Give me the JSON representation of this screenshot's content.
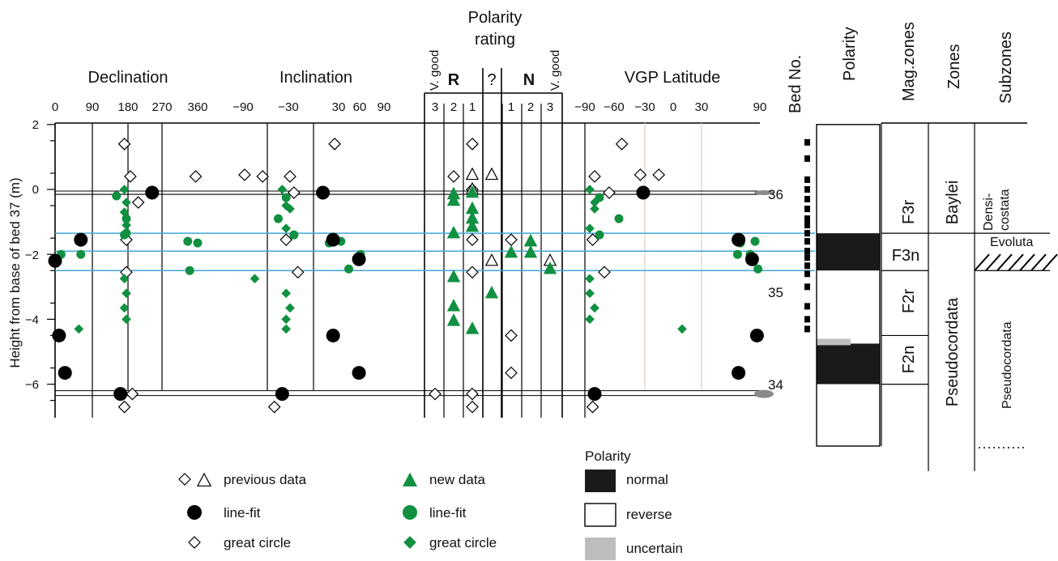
{
  "panels": {
    "declination": "Declination",
    "inclination": "Inclination",
    "vgp": "VGP Latitude",
    "polarity_rating_l1": "Polarity",
    "polarity_rating_l2": "rating",
    "bed_no": "Bed No.",
    "polarity_col": "Polarity",
    "magzones": "Mag.zones",
    "zones": "Zones",
    "subzones": "Subzones"
  },
  "axes": {
    "ylabel": "Height from base of bed 37 (m)",
    "y_ticks": [
      "2",
      "0",
      "−2",
      "−4",
      "−6"
    ],
    "decl_ticks": [
      "0",
      "90",
      "180",
      "270",
      "360"
    ],
    "incl_ticks": [
      "−90",
      "−30",
      "30",
      "60",
      "90"
    ],
    "vgp_ticks": [
      "−90",
      "−60",
      "−30",
      "0",
      "30",
      "90"
    ]
  },
  "rating": {
    "r_label": "R",
    "n_label": "N",
    "q_label": "?",
    "vgood_left": "V. good",
    "vgood_right": "V. good",
    "r_cols": [
      "3",
      "2",
      "1"
    ],
    "n_cols": [
      "1",
      "2",
      "3"
    ]
  },
  "beds": [
    "36",
    "35",
    "34"
  ],
  "magzones": [
    "F3r",
    "F3n",
    "F2r",
    "F2n"
  ],
  "zones": [
    "Baylei",
    "Pseudocordata"
  ],
  "subzones": [
    "Densi-",
    "costata",
    "Evoluta",
    "Pseudocordata"
  ],
  "legend": {
    "prev_title": "previous data",
    "prev_linefit": "line-fit",
    "prev_gc": "great circle",
    "new_title": "new data",
    "new_linefit": "line-fit",
    "new_gc": "great circle",
    "polarity_title": "Polarity",
    "normal": "normal",
    "reverse": "reverse",
    "uncertain": "uncertain"
  },
  "colors": {
    "new_data": "#109040",
    "old_data": "#000000",
    "normal": "#1a1a1a",
    "uncertain": "#bdbdbd",
    "boundary_line": "#3fa9d6",
    "marker_grey": "#8a8a8a"
  },
  "chart_data": {
    "type": "scatter",
    "units": {
      "height": "m",
      "declination": "deg",
      "inclination": "deg",
      "vgp": "deg"
    },
    "ylim": [
      -7,
      2
    ],
    "bed_boundaries": [
      -0.05,
      -0.15,
      -6.2,
      -6.35
    ],
    "polarity_boundaries": [
      -1.35,
      -1.9,
      -2.5
    ],
    "declination": {
      "xlim": [
        0,
        360
      ],
      "old_linefit": [
        [
          0,
          -2.2
        ],
        [
          10,
          -4.5
        ],
        [
          25,
          -5.65
        ],
        [
          65,
          -1.55
        ],
        [
          165,
          -6.3
        ],
        [
          245,
          -0.1
        ]
      ],
      "old_gc": [
        [
          175,
          -6.7
        ],
        [
          195,
          -6.3
        ],
        [
          210,
          -0.4
        ],
        [
          175,
          1.4
        ],
        [
          180,
          -1.55
        ],
        [
          180,
          -2.55
        ],
        [
          190,
          0.4
        ],
        [
          355,
          0.4
        ]
      ],
      "new_linefit": [
        [
          15,
          -2.0
        ],
        [
          65,
          -2.0
        ],
        [
          155,
          -0.2
        ],
        [
          175,
          -1.4
        ],
        [
          180,
          -0.9
        ],
        [
          180,
          -1.35
        ],
        [
          335,
          -1.6
        ],
        [
          360,
          -1.65
        ],
        [
          340,
          -2.5
        ]
      ],
      "new_gc": [
        [
          60,
          -4.3
        ],
        [
          175,
          0
        ],
        [
          180,
          -0.4
        ],
        [
          175,
          -0.7
        ],
        [
          180,
          -1.1
        ],
        [
          175,
          -2.75
        ],
        [
          180,
          -3.2
        ],
        [
          175,
          -3.65
        ],
        [
          180,
          -4.0
        ]
      ]
    },
    "inclination": {
      "xlim": [
        -90,
        90
      ],
      "old_linefit": [
        [
          -40,
          -6.3
        ],
        [
          12,
          -0.1
        ],
        [
          25,
          -1.55
        ],
        [
          25,
          -4.5
        ],
        [
          58,
          -2.15
        ],
        [
          58,
          -5.65
        ]
      ],
      "old_gc": [
        [
          -65,
          0.4
        ],
        [
          -50,
          -6.7
        ],
        [
          -40,
          -6.3
        ],
        [
          -35,
          -1.55
        ],
        [
          -30,
          0.4
        ],
        [
          -25,
          -0.1
        ],
        [
          -20,
          -2.55
        ],
        [
          27,
          1.4
        ],
        [
          -88,
          0.45
        ]
      ],
      "new_linefit": [
        [
          -45,
          -0.9
        ],
        [
          -35,
          -0.25
        ],
        [
          -25,
          -1.4
        ],
        [
          20,
          -1.65
        ],
        [
          35,
          -1.6
        ],
        [
          45,
          -2.45
        ],
        [
          60,
          -2.0
        ]
      ],
      "new_gc": [
        [
          -75,
          -2.75
        ],
        [
          -40,
          0
        ],
        [
          -35,
          -0.5
        ],
        [
          -30,
          -0.6
        ],
        [
          -35,
          -1.2
        ],
        [
          -35,
          -3.2
        ],
        [
          -30,
          -3.65
        ],
        [
          -35,
          -4.0
        ],
        [
          -35,
          -4.3
        ]
      ]
    },
    "polarity_rating": {
      "columns": [
        "R3",
        "R2",
        "R1",
        "?",
        "N1",
        "N2",
        "N3"
      ],
      "old_gc": [
        [
          "R3",
          -6.3
        ],
        [
          "R2",
          0.4
        ],
        [
          "R1",
          1.4
        ],
        [
          "R1",
          0
        ],
        [
          "R1",
          -1.55
        ],
        [
          "R1",
          -2.55
        ],
        [
          "R1",
          -6.3
        ],
        [
          "R1",
          -6.7
        ],
        [
          "N1",
          -1.55
        ],
        [
          "N1",
          -4.5
        ],
        [
          "N1",
          -5.65
        ]
      ],
      "old_triangle": [
        [
          "R1",
          0.45
        ],
        [
          "R1",
          0
        ],
        [
          "?",
          0.45
        ],
        [
          "?",
          -2.2
        ],
        [
          "N3",
          -2.2
        ]
      ],
      "new_triangle": [
        [
          "R2",
          -0.15
        ],
        [
          "R2",
          -0.35
        ],
        [
          "R2",
          -1.35
        ],
        [
          "R2",
          -2.7
        ],
        [
          "R2",
          -3.6
        ],
        [
          "R2",
          -4.05
        ],
        [
          "R1",
          -0.1
        ],
        [
          "R1",
          -0.6
        ],
        [
          "R1",
          -0.9
        ],
        [
          "R1",
          -1.15
        ],
        [
          "R1",
          -4.3
        ],
        [
          "?",
          -3.2
        ],
        [
          "N1",
          -1.95
        ],
        [
          "N2",
          -1.6
        ],
        [
          "N2",
          -1.95
        ],
        [
          "N2",
          -1.6
        ],
        [
          "N3",
          -2.45
        ]
      ]
    },
    "vgp_latitude": {
      "xlim": [
        -90,
        90
      ],
      "old_linefit": [
        [
          -80,
          -6.3
        ],
        [
          -30,
          -0.1
        ],
        [
          68,
          -1.55
        ],
        [
          82,
          -2.15
        ],
        [
          87,
          -4.5
        ],
        [
          68,
          -5.65
        ]
      ],
      "old_gc": [
        [
          -82,
          -6.7
        ],
        [
          -80,
          -6.3
        ],
        [
          -80,
          0.4
        ],
        [
          -82,
          -1.55
        ],
        [
          -70,
          -2.55
        ],
        [
          -65,
          -0.1
        ],
        [
          -52,
          1.4
        ],
        [
          -33,
          0.45
        ],
        [
          -14,
          0.45
        ]
      ],
      "new_linefit": [
        [
          -75,
          -0.25
        ],
        [
          -75,
          -1.4
        ],
        [
          -55,
          -0.9
        ],
        [
          70,
          -1.65
        ],
        [
          85,
          -1.6
        ],
        [
          80,
          -2.0
        ],
        [
          88,
          -2.45
        ],
        [
          67,
          -2.0
        ]
      ],
      "new_gc": [
        [
          -85,
          0
        ],
        [
          -80,
          -0.4
        ],
        [
          -80,
          -0.6
        ],
        [
          -85,
          -1.2
        ],
        [
          -85,
          -3.2
        ],
        [
          -80,
          -3.65
        ],
        [
          -85,
          -4.0
        ],
        [
          -85,
          -2.75
        ],
        [
          10,
          -4.3
        ]
      ]
    },
    "polarity_column": [
      {
        "from": 2,
        "to": -1.35,
        "polarity": "reverse"
      },
      {
        "from": -1.35,
        "to": -2.5,
        "polarity": "normal"
      },
      {
        "from": -2.5,
        "to": -4.6,
        "polarity": "reverse"
      },
      {
        "from": -4.6,
        "to": -4.75,
        "polarity": "uncertain"
      },
      {
        "from": -4.75,
        "to": -6.0,
        "polarity": "normal"
      },
      {
        "from": -6.0,
        "to": -7,
        "polarity": "reverse"
      }
    ]
  }
}
